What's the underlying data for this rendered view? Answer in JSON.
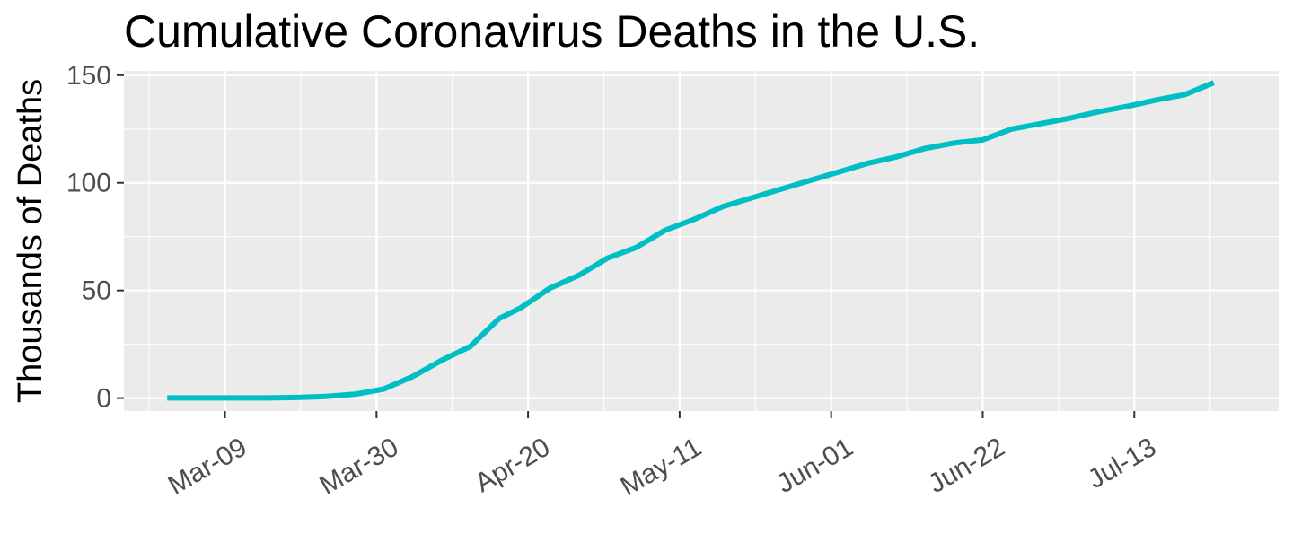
{
  "chart_data": {
    "type": "line",
    "title": "Cumulative Coronavirus Deaths in the U.S.",
    "xlabel": "",
    "ylabel": "Thousands of Deaths",
    "x_tick_labels": [
      "Mar-09",
      "Mar-30",
      "Apr-20",
      "May-11",
      "Jun-01",
      "Jun-22",
      "Jul-13"
    ],
    "x_tick_dates": [
      "2020-03-09",
      "2020-03-30",
      "2020-04-20",
      "2020-05-11",
      "2020-06-01",
      "2020-06-22",
      "2020-07-13"
    ],
    "y_ticks": [
      0,
      50,
      100,
      150
    ],
    "xlim": [
      "2020-02-24",
      "2020-08-02"
    ],
    "ylim": [
      -6,
      152
    ],
    "grid": true,
    "line_color": "#00BFC4",
    "panel_background": "#EBEBEB",
    "series": [
      {
        "x": [
          "2020-03-01",
          "2020-03-08",
          "2020-03-15",
          "2020-03-19",
          "2020-03-23",
          "2020-03-27",
          "2020-03-31",
          "2020-04-04",
          "2020-04-08",
          "2020-04-12",
          "2020-04-16",
          "2020-04-19",
          "2020-04-23",
          "2020-04-27",
          "2020-05-01",
          "2020-05-05",
          "2020-05-09",
          "2020-05-13",
          "2020-05-17",
          "2020-05-21",
          "2020-05-25",
          "2020-05-29",
          "2020-06-02",
          "2020-06-06",
          "2020-06-10",
          "2020-06-14",
          "2020-06-18",
          "2020-06-22",
          "2020-06-26",
          "2020-06-30",
          "2020-07-04",
          "2020-07-08",
          "2020-07-12",
          "2020-07-16",
          "2020-07-20",
          "2020-07-24"
        ],
        "y": [
          0.1,
          0.1,
          0.1,
          0.3,
          0.8,
          1.8,
          4.2,
          10,
          17.5,
          24,
          37,
          42,
          51,
          57,
          65,
          70,
          78,
          83,
          89,
          93,
          97,
          101,
          105,
          109,
          112,
          116,
          118.5,
          120,
          125,
          127.5,
          130,
          133,
          135.5,
          138.5,
          141,
          146.5
        ]
      }
    ]
  }
}
